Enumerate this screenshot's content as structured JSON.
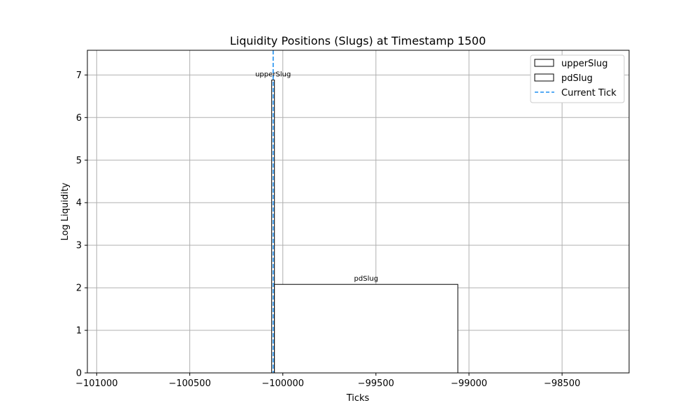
{
  "chart_data": {
    "type": "bar",
    "title": "Liquidity Positions (Slugs) at Timestamp 1500",
    "xlabel": "Ticks",
    "ylabel": "Log Liquidity",
    "xlim": [
      -101050,
      -98140
    ],
    "ylim": [
      0,
      7.58
    ],
    "xticks": [
      -101000,
      -100500,
      -100000,
      -99500,
      -99000,
      -98500
    ],
    "xtick_labels": [
      "−101000",
      "−100500",
      "−100000",
      "−99500",
      "−99000",
      "−98500"
    ],
    "yticks": [
      0,
      1,
      2,
      3,
      4,
      5,
      6,
      7
    ],
    "ytick_labels": [
      "0",
      "1",
      "2",
      "3",
      "4",
      "5",
      "6",
      "7"
    ],
    "grid": true,
    "legend_position": "top-right",
    "bars": [
      {
        "label": "upperSlug",
        "tick_lower": -100060,
        "tick_upper": -100045,
        "value": 6.88
      },
      {
        "label": "pdSlug",
        "tick_lower": -100045,
        "tick_upper": -99060,
        "value": 2.08
      }
    ],
    "current_tick": {
      "label": "Current Tick",
      "value": -100052,
      "color": "#1f8ff0",
      "style": "dashed"
    },
    "legend": [
      "upperSlug",
      "pdSlug",
      "Current Tick"
    ],
    "colors": {
      "bar_edge": "#000000",
      "bar_fill": "#ffffff",
      "grid": "#b0b0b0",
      "current_tick": "#1f8ff0"
    }
  }
}
